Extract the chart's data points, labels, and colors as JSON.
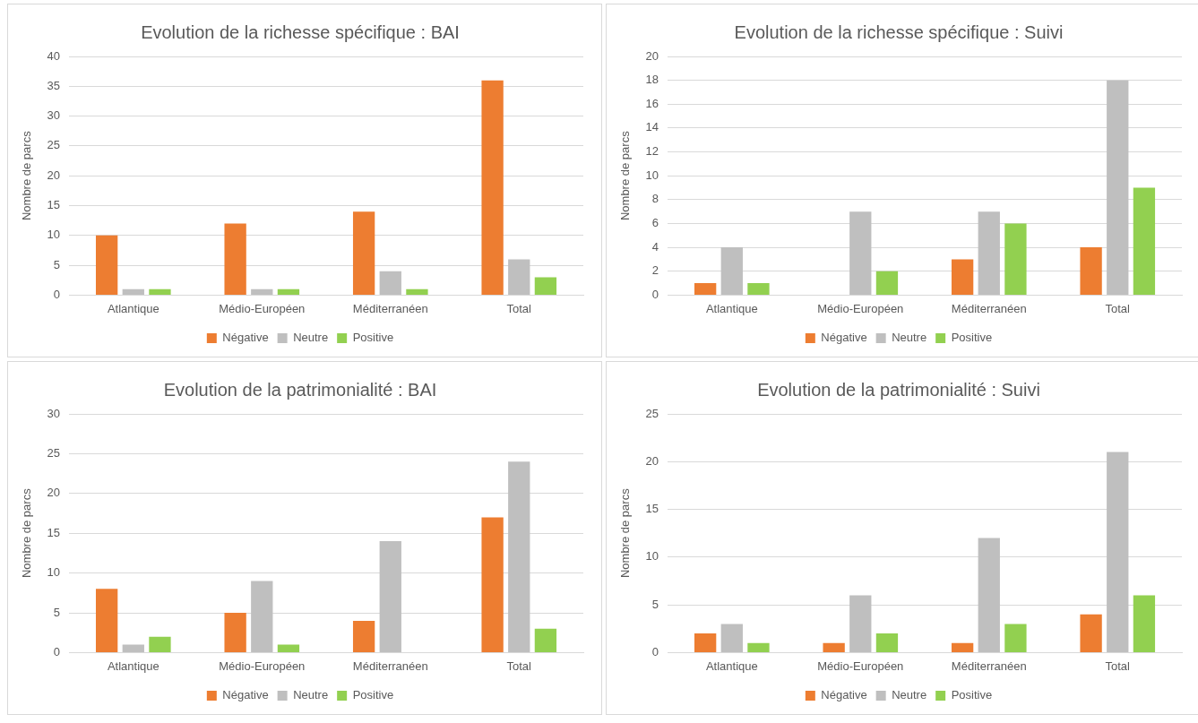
{
  "chart_data": [
    {
      "type": "bar",
      "title": "Evolution de la richesse spécifique : BAI",
      "ylabel": "Nombre de parcs",
      "categories": [
        "Atlantique",
        "Médio-Européen",
        "Méditerranéen",
        "Total"
      ],
      "series": [
        {
          "name": "Négative",
          "color": "#ed7d31",
          "values": [
            10,
            12,
            14,
            36
          ]
        },
        {
          "name": "Neutre",
          "color": "#bfbfbf",
          "values": [
            1,
            1,
            4,
            6
          ]
        },
        {
          "name": "Positive",
          "color": "#92d050",
          "values": [
            1,
            1,
            1,
            3
          ]
        }
      ],
      "ylim": [
        0,
        40
      ],
      "yticks": [
        0,
        5,
        10,
        15,
        20,
        25,
        30,
        35,
        40
      ],
      "grid": "y",
      "legend": "bottom"
    },
    {
      "type": "bar",
      "title": "Evolution de la richesse spécifique : Suivi",
      "ylabel": "Nombre de parcs",
      "categories": [
        "Atlantique",
        "Médio-Européen",
        "Méditerranéen",
        "Total"
      ],
      "series": [
        {
          "name": "Négative",
          "color": "#ed7d31",
          "values": [
            1,
            0,
            3,
            4
          ]
        },
        {
          "name": "Neutre",
          "color": "#bfbfbf",
          "values": [
            4,
            7,
            7,
            18
          ]
        },
        {
          "name": "Positive",
          "color": "#92d050",
          "values": [
            1,
            2,
            6,
            9
          ]
        }
      ],
      "ylim": [
        0,
        20
      ],
      "yticks": [
        0,
        2,
        4,
        6,
        8,
        10,
        12,
        14,
        16,
        18,
        20
      ],
      "grid": "y",
      "legend": "bottom"
    },
    {
      "type": "bar",
      "title": "Evolution de la patrimonialité : BAI",
      "ylabel": "Nombre de parcs",
      "categories": [
        "Atlantique",
        "Médio-Européen",
        "Méditerranéen",
        "Total"
      ],
      "series": [
        {
          "name": "Négative",
          "color": "#ed7d31",
          "values": [
            8,
            5,
            4,
            17
          ]
        },
        {
          "name": "Neutre",
          "color": "#bfbfbf",
          "values": [
            1,
            9,
            14,
            24
          ]
        },
        {
          "name": "Positive",
          "color": "#92d050",
          "values": [
            2,
            1,
            0,
            3
          ]
        }
      ],
      "ylim": [
        0,
        30
      ],
      "yticks": [
        0,
        5,
        10,
        15,
        20,
        25,
        30
      ],
      "grid": "y",
      "legend": "bottom"
    },
    {
      "type": "bar",
      "title": "Evolution de la patrimonialité : Suivi",
      "ylabel": "Nombre de parcs",
      "categories": [
        "Atlantique",
        "Médio-Européen",
        "Méditerranéen",
        "Total"
      ],
      "series": [
        {
          "name": "Négative",
          "color": "#ed7d31",
          "values": [
            2,
            1,
            1,
            4
          ]
        },
        {
          "name": "Neutre",
          "color": "#bfbfbf",
          "values": [
            3,
            6,
            12,
            21
          ]
        },
        {
          "name": "Positive",
          "color": "#92d050",
          "values": [
            1,
            2,
            3,
            6
          ]
        }
      ],
      "ylim": [
        0,
        25
      ],
      "yticks": [
        0,
        5,
        10,
        15,
        20,
        25
      ],
      "grid": "y",
      "legend": "bottom"
    }
  ]
}
